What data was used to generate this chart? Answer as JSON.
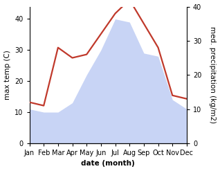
{
  "months": [
    "Jan",
    "Feb",
    "Mar",
    "Apr",
    "May",
    "Jun",
    "Jul",
    "Aug",
    "Sep",
    "Oct",
    "Nov",
    "Dec"
  ],
  "temperature": [
    11,
    10,
    10,
    13,
    22,
    30,
    40,
    39,
    29,
    28,
    14,
    11
  ],
  "precipitation": [
    12,
    11,
    28,
    25,
    26,
    32,
    38,
    42,
    35,
    28,
    14,
    13
  ],
  "temp_fill_color": "#c8d4f5",
  "precip_color": "#c0392b",
  "left_ylabel": "max temp (C)",
  "right_ylabel": "med. precipitation (kg/m2)",
  "xlabel": "date (month)",
  "ylim_left": [
    0,
    44
  ],
  "ylim_right": [
    0,
    40
  ],
  "yticks_left": [
    0,
    10,
    20,
    30,
    40
  ],
  "yticks_right": [
    0,
    10,
    20,
    30,
    40
  ],
  "background_color": "#ffffff",
  "precip_linewidth": 1.6,
  "label_fontsize": 7.5,
  "tick_fontsize": 7
}
